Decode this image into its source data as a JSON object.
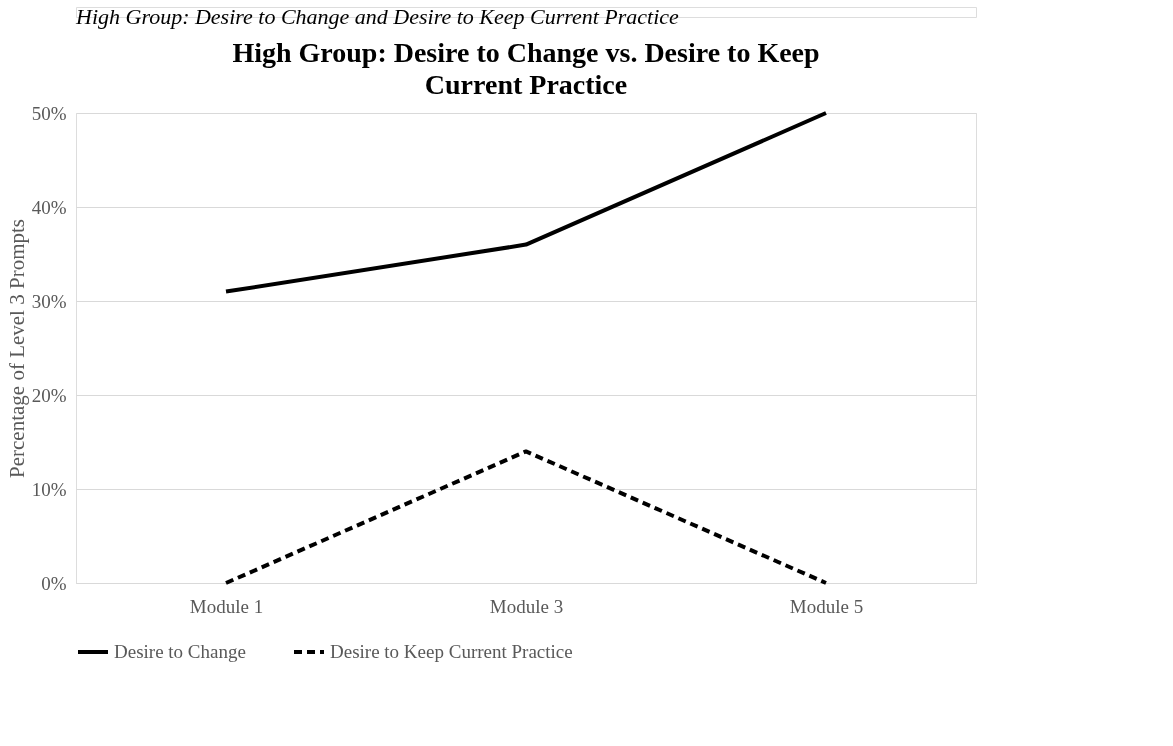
{
  "chart_data": {
    "type": "line",
    "title": "High Group: Desire to Change vs. Desire to Keep Current Practice",
    "ylabel": "Percentage of Level 3 Prompts",
    "annotations": [
      "High Group: Desire to Change and Desire to Keep Current Practice"
    ],
    "categories": [
      "Module 1",
      "Module 3",
      "Module 5"
    ],
    "series": [
      {
        "name": "Desire to Change",
        "color": "#000000",
        "line_style": "solid",
        "values": [
          31,
          36,
          50
        ]
      },
      {
        "name": "Desire to Keep Current Practice",
        "color": "#000000",
        "line_style": "dashed",
        "values": [
          0,
          14,
          0
        ]
      }
    ],
    "ylim": [
      0,
      50
    ],
    "yticks": [
      {
        "value": 0,
        "label": "0%"
      },
      {
        "value": 10,
        "label": "10%"
      },
      {
        "value": 20,
        "label": "20%"
      },
      {
        "value": 30,
        "label": "30%"
      },
      {
        "value": 40,
        "label": "40%"
      },
      {
        "value": 50,
        "label": "50%"
      }
    ],
    "grid": "y",
    "legend": "bottom",
    "marker": "none"
  }
}
